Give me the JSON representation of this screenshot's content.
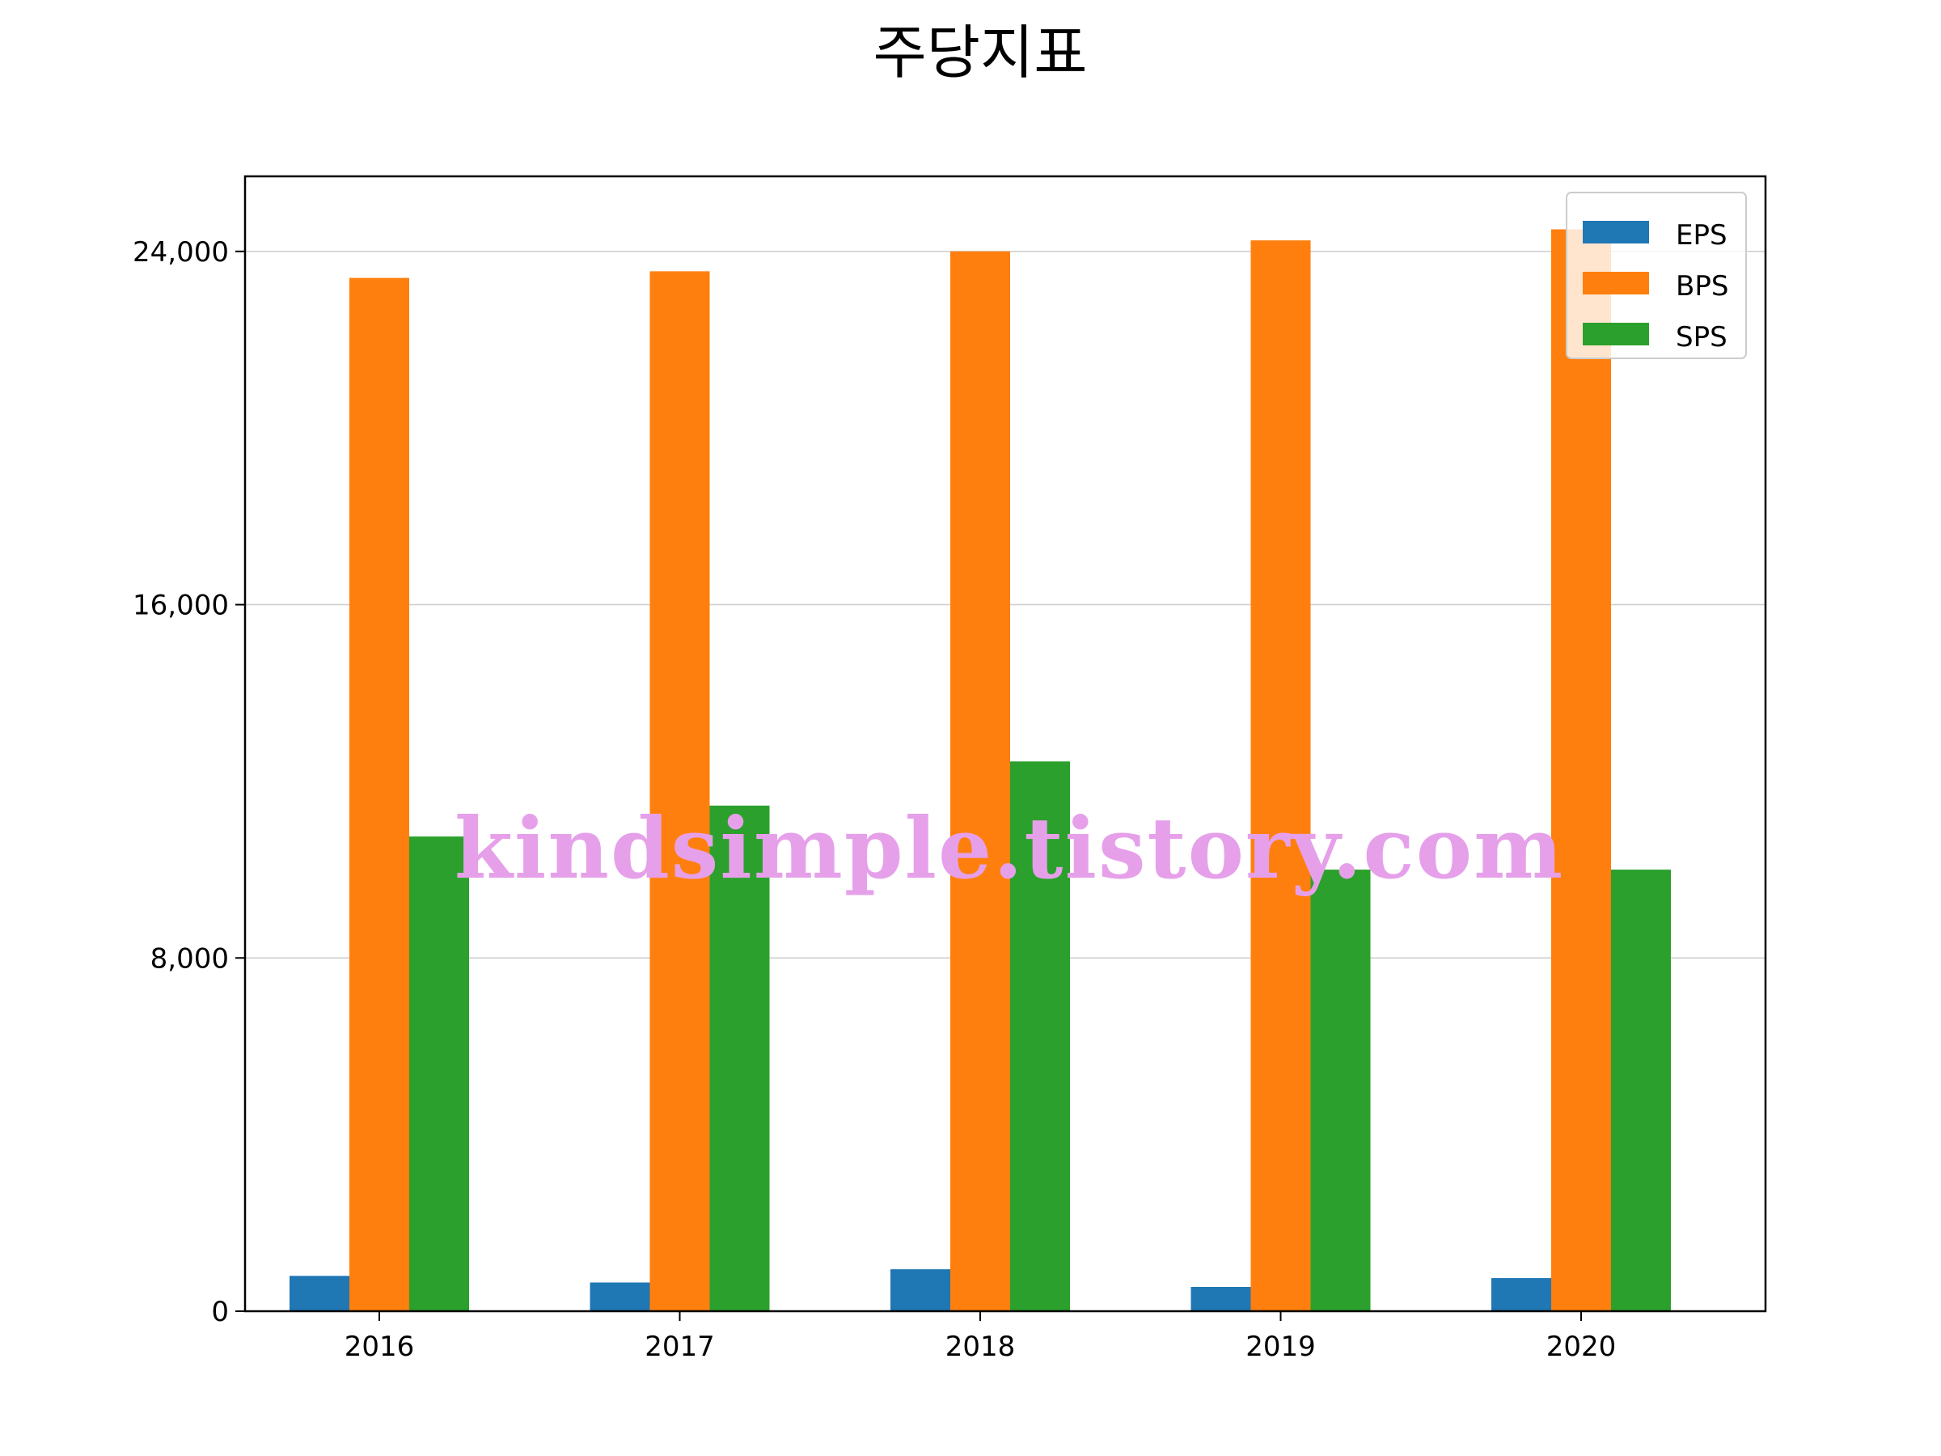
{
  "chart_data": {
    "type": "bar",
    "title": "주당지표",
    "categories": [
      "2016",
      "2017",
      "2018",
      "2019",
      "2020"
    ],
    "series": [
      {
        "name": "EPS",
        "color": "#1f77b4",
        "values": [
          800,
          650,
          950,
          550,
          750
        ]
      },
      {
        "name": "BPS",
        "color": "#ff7f0e",
        "values": [
          23400,
          23550,
          24000,
          24250,
          24500
        ]
      },
      {
        "name": "SPS",
        "color": "#2ca02c",
        "values": [
          10750,
          11450,
          12450,
          10000,
          10000
        ]
      }
    ],
    "yticks": [
      0,
      8000,
      16000,
      24000
    ],
    "ytick_labels": [
      "0",
      "8,000",
      "16,000",
      "24,000"
    ],
    "ylim": [
      0,
      25700
    ],
    "xlabel": "",
    "ylabel": "",
    "grid": "horizontal",
    "legend_position": "top-right"
  },
  "watermark": "kindsimple.tistory.com"
}
